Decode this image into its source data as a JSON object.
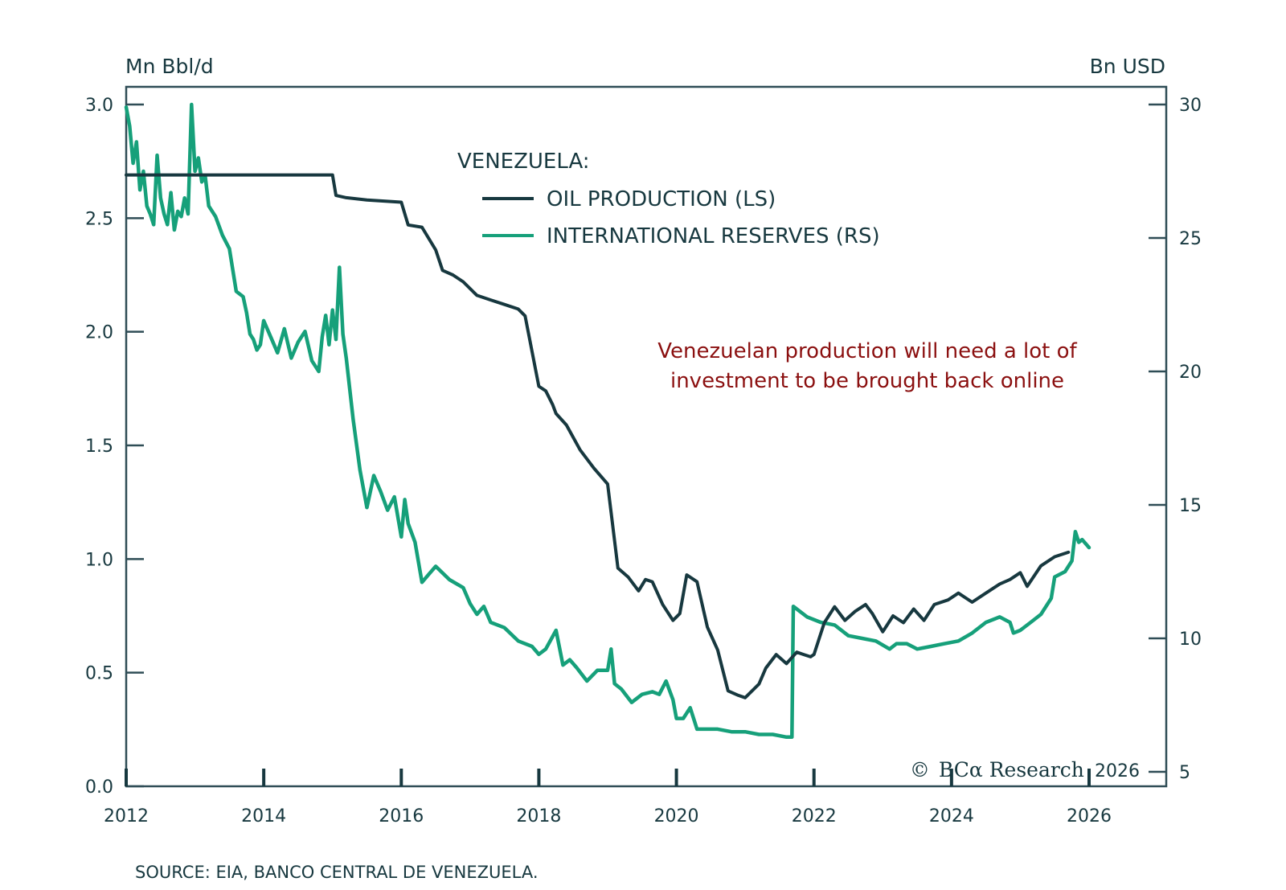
{
  "chart_data": {
    "type": "line",
    "title": "VENEZUELA:",
    "annotation": [
      "Venezuelan production will need a lot of",
      "investment to be brought back online"
    ],
    "source": "SOURCE: EIA, BANCO CENTRAL DE VENEZUELA.",
    "copyright": {
      "symbol": "©",
      "brand": "BCα Research",
      "year": "2026"
    },
    "left_axis": {
      "label": "Mn Bbl/d",
      "range": [
        0,
        3.0
      ],
      "ticks": [
        0.0,
        0.5,
        1.0,
        1.5,
        2.0,
        2.5,
        3.0
      ],
      "tick_labels": [
        "0.0",
        "0.5",
        "1.0",
        "1.5",
        "2.0",
        "2.5",
        "3.0"
      ]
    },
    "right_axis": {
      "label": "Bn USD",
      "range": [
        5,
        30
      ],
      "ticks": [
        5,
        10,
        15,
        20,
        25,
        30
      ],
      "tick_labels": [
        "5",
        "10",
        "15",
        "20",
        "25",
        "30"
      ]
    },
    "x_axis": {
      "range": [
        2012,
        2026.2
      ],
      "ticks": [
        2012,
        2014,
        2016,
        2018,
        2020,
        2022,
        2024,
        2026
      ],
      "tick_labels": [
        "2012",
        "2014",
        "2016",
        "2018",
        "2020",
        "2022",
        "2024",
        "2026"
      ]
    },
    "legend": {
      "placement": "top-center",
      "entries": [
        {
          "label": "OIL PRODUCTION (LS)",
          "color": "#17383f"
        },
        {
          "label": "INTERNATIONAL RESERVES (RS)",
          "color": "#16a07a"
        }
      ]
    },
    "grid": false,
    "series": [
      {
        "name": "OIL PRODUCTION (LS)",
        "axis": "left",
        "color": "#17383f",
        "x": [
          2012.0,
          2013.0,
          2014.0,
          2015.0,
          2015.05,
          2015.2,
          2015.5,
          2016.0,
          2016.1,
          2016.3,
          2016.5,
          2016.6,
          2016.75,
          2016.9,
          2017.1,
          2017.3,
          2017.5,
          2017.7,
          2017.8,
          2018.0,
          2018.1,
          2018.2,
          2018.25,
          2018.4,
          2018.6,
          2018.8,
          2019.0,
          2019.15,
          2019.3,
          2019.45,
          2019.55,
          2019.65,
          2019.8,
          2019.95,
          2020.05,
          2020.15,
          2020.3,
          2020.45,
          2020.6,
          2020.75,
          2020.9,
          2021.0,
          2021.1,
          2021.2,
          2021.3,
          2021.45,
          2021.6,
          2021.75,
          2021.85,
          2021.95,
          2022.0,
          2022.15,
          2022.3,
          2022.45,
          2022.6,
          2022.75,
          2022.85,
          2023.0,
          2023.15,
          2023.3,
          2023.45,
          2023.6,
          2023.75,
          2023.95,
          2024.1,
          2024.3,
          2024.5,
          2024.7,
          2024.85,
          2025.0,
          2025.1,
          2025.3,
          2025.5,
          2025.7
        ],
        "values": [
          2.69,
          2.69,
          2.69,
          2.69,
          2.6,
          2.59,
          2.58,
          2.57,
          2.47,
          2.46,
          2.36,
          2.27,
          2.25,
          2.22,
          2.16,
          2.14,
          2.12,
          2.1,
          2.07,
          1.76,
          1.74,
          1.68,
          1.64,
          1.59,
          1.48,
          1.4,
          1.33,
          0.96,
          0.92,
          0.86,
          0.91,
          0.9,
          0.8,
          0.73,
          0.76,
          0.93,
          0.9,
          0.7,
          0.6,
          0.42,
          0.4,
          0.39,
          0.42,
          0.45,
          0.52,
          0.58,
          0.54,
          0.59,
          0.58,
          0.57,
          0.58,
          0.72,
          0.79,
          0.73,
          0.77,
          0.8,
          0.76,
          0.68,
          0.75,
          0.72,
          0.78,
          0.73,
          0.8,
          0.82,
          0.85,
          0.81,
          0.85,
          0.89,
          0.91,
          0.94,
          0.88,
          0.97,
          1.01,
          1.03
        ]
      },
      {
        "name": "INTERNATIONAL RESERVES (RS)",
        "axis": "right",
        "color": "#16a07a",
        "x": [
          2012.0,
          2012.05,
          2012.1,
          2012.15,
          2012.2,
          2012.25,
          2012.3,
          2012.35,
          2012.4,
          2012.45,
          2012.5,
          2012.55,
          2012.6,
          2012.65,
          2012.7,
          2012.75,
          2012.8,
          2012.85,
          2012.9,
          2012.95,
          2013.0,
          2013.05,
          2013.1,
          2013.15,
          2013.2,
          2013.3,
          2013.4,
          2013.5,
          2013.6,
          2013.7,
          2013.75,
          2013.8,
          2013.85,
          2013.9,
          2013.95,
          2014.0,
          2014.1,
          2014.2,
          2014.3,
          2014.4,
          2014.5,
          2014.6,
          2014.7,
          2014.8,
          2014.85,
          2014.9,
          2014.95,
          2015.0,
          2015.05,
          2015.1,
          2015.15,
          2015.2,
          2015.3,
          2015.4,
          2015.5,
          2015.6,
          2015.7,
          2015.8,
          2015.9,
          2016.0,
          2016.05,
          2016.1,
          2016.2,
          2016.3,
          2016.4,
          2016.5,
          2016.7,
          2016.9,
          2017.0,
          2017.1,
          2017.2,
          2017.3,
          2017.5,
          2017.7,
          2017.9,
          2018.0,
          2018.1,
          2018.25,
          2018.35,
          2018.45,
          2018.55,
          2018.7,
          2018.85,
          2019.0,
          2019.05,
          2019.1,
          2019.2,
          2019.35,
          2019.5,
          2019.65,
          2019.75,
          2019.85,
          2019.95,
          2020.0,
          2020.1,
          2020.2,
          2020.3,
          2020.45,
          2020.6,
          2020.8,
          2021.0,
          2021.2,
          2021.4,
          2021.6,
          2021.68,
          2021.7,
          2021.9,
          2022.1,
          2022.3,
          2022.5,
          2022.7,
          2022.9,
          2023.1,
          2023.2,
          2023.35,
          2023.5,
          2023.7,
          2023.9,
          2024.1,
          2024.3,
          2024.5,
          2024.7,
          2024.85,
          2024.9,
          2025.0,
          2025.15,
          2025.3,
          2025.45,
          2025.5,
          2025.65,
          2025.75,
          2025.8,
          2025.85,
          2025.9,
          2026.0
        ],
        "values": [
          29.9,
          29.2,
          27.8,
          28.6,
          26.8,
          27.5,
          26.2,
          25.9,
          25.5,
          28.1,
          26.5,
          25.9,
          25.5,
          26.7,
          25.3,
          26.0,
          25.8,
          26.5,
          25.9,
          30.0,
          27.5,
          28.0,
          27.1,
          27.3,
          26.2,
          25.8,
          25.1,
          24.6,
          23.0,
          22.8,
          22.2,
          21.4,
          21.2,
          20.8,
          21.0,
          21.9,
          21.3,
          20.7,
          21.6,
          20.5,
          21.1,
          21.5,
          20.4,
          20.0,
          21.3,
          22.1,
          21.0,
          22.3,
          21.2,
          23.9,
          21.4,
          20.5,
          18.2,
          16.3,
          14.9,
          16.1,
          15.5,
          14.8,
          15.3,
          13.8,
          15.2,
          14.3,
          13.6,
          12.1,
          12.4,
          12.7,
          12.2,
          11.9,
          11.3,
          10.9,
          11.2,
          10.6,
          10.4,
          9.9,
          9.7,
          9.4,
          9.6,
          10.3,
          9.0,
          9.2,
          8.9,
          8.4,
          8.8,
          8.8,
          9.6,
          8.3,
          8.1,
          7.6,
          7.9,
          8.0,
          7.9,
          8.4,
          7.7,
          7.0,
          7.0,
          7.4,
          6.6,
          6.6,
          6.6,
          6.5,
          6.5,
          6.4,
          6.4,
          6.3,
          6.3,
          11.2,
          10.8,
          10.6,
          10.5,
          10.1,
          10.0,
          9.9,
          9.6,
          9.8,
          9.8,
          9.6,
          9.7,
          9.8,
          9.9,
          10.2,
          10.6,
          10.8,
          10.6,
          10.2,
          10.3,
          10.6,
          10.9,
          11.5,
          12.3,
          12.5,
          12.9,
          14.0,
          13.6,
          13.7,
          13.4
        ]
      }
    ]
  }
}
